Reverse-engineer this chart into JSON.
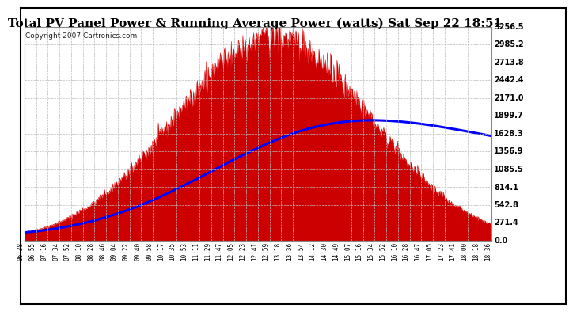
{
  "title": "Total PV Panel Power & Running Average Power (watts) Sat Sep 22 18:51",
  "copyright": "Copyright 2007 Cartronics.com",
  "background_color": "#ffffff",
  "plot_bg_color": "#ffffff",
  "yticks": [
    0.0,
    271.4,
    542.8,
    814.1,
    1085.5,
    1356.9,
    1628.3,
    1899.7,
    2171.0,
    2442.4,
    2713.8,
    2985.2,
    3256.5
  ],
  "ymax": 3256.5,
  "xtick_labels": [
    "06:38",
    "06:55",
    "07:16",
    "07:34",
    "07:52",
    "08:10",
    "08:28",
    "08:46",
    "09:04",
    "09:22",
    "09:40",
    "09:58",
    "10:17",
    "10:35",
    "10:53",
    "11:11",
    "11:29",
    "11:47",
    "12:05",
    "12:23",
    "12:41",
    "12:59",
    "13:18",
    "13:36",
    "13:54",
    "14:12",
    "14:30",
    "14:49",
    "15:07",
    "15:16",
    "15:34",
    "15:52",
    "16:10",
    "16:28",
    "16:47",
    "17:05",
    "17:23",
    "17:41",
    "18:00",
    "18:18",
    "18:36"
  ],
  "red_color": "#dd0000",
  "red_fill_color": "#cc0000",
  "blue_color": "#0000ff",
  "grid_color": "#bbbbbb",
  "title_fontsize": 11,
  "copyright_fontsize": 6.5
}
